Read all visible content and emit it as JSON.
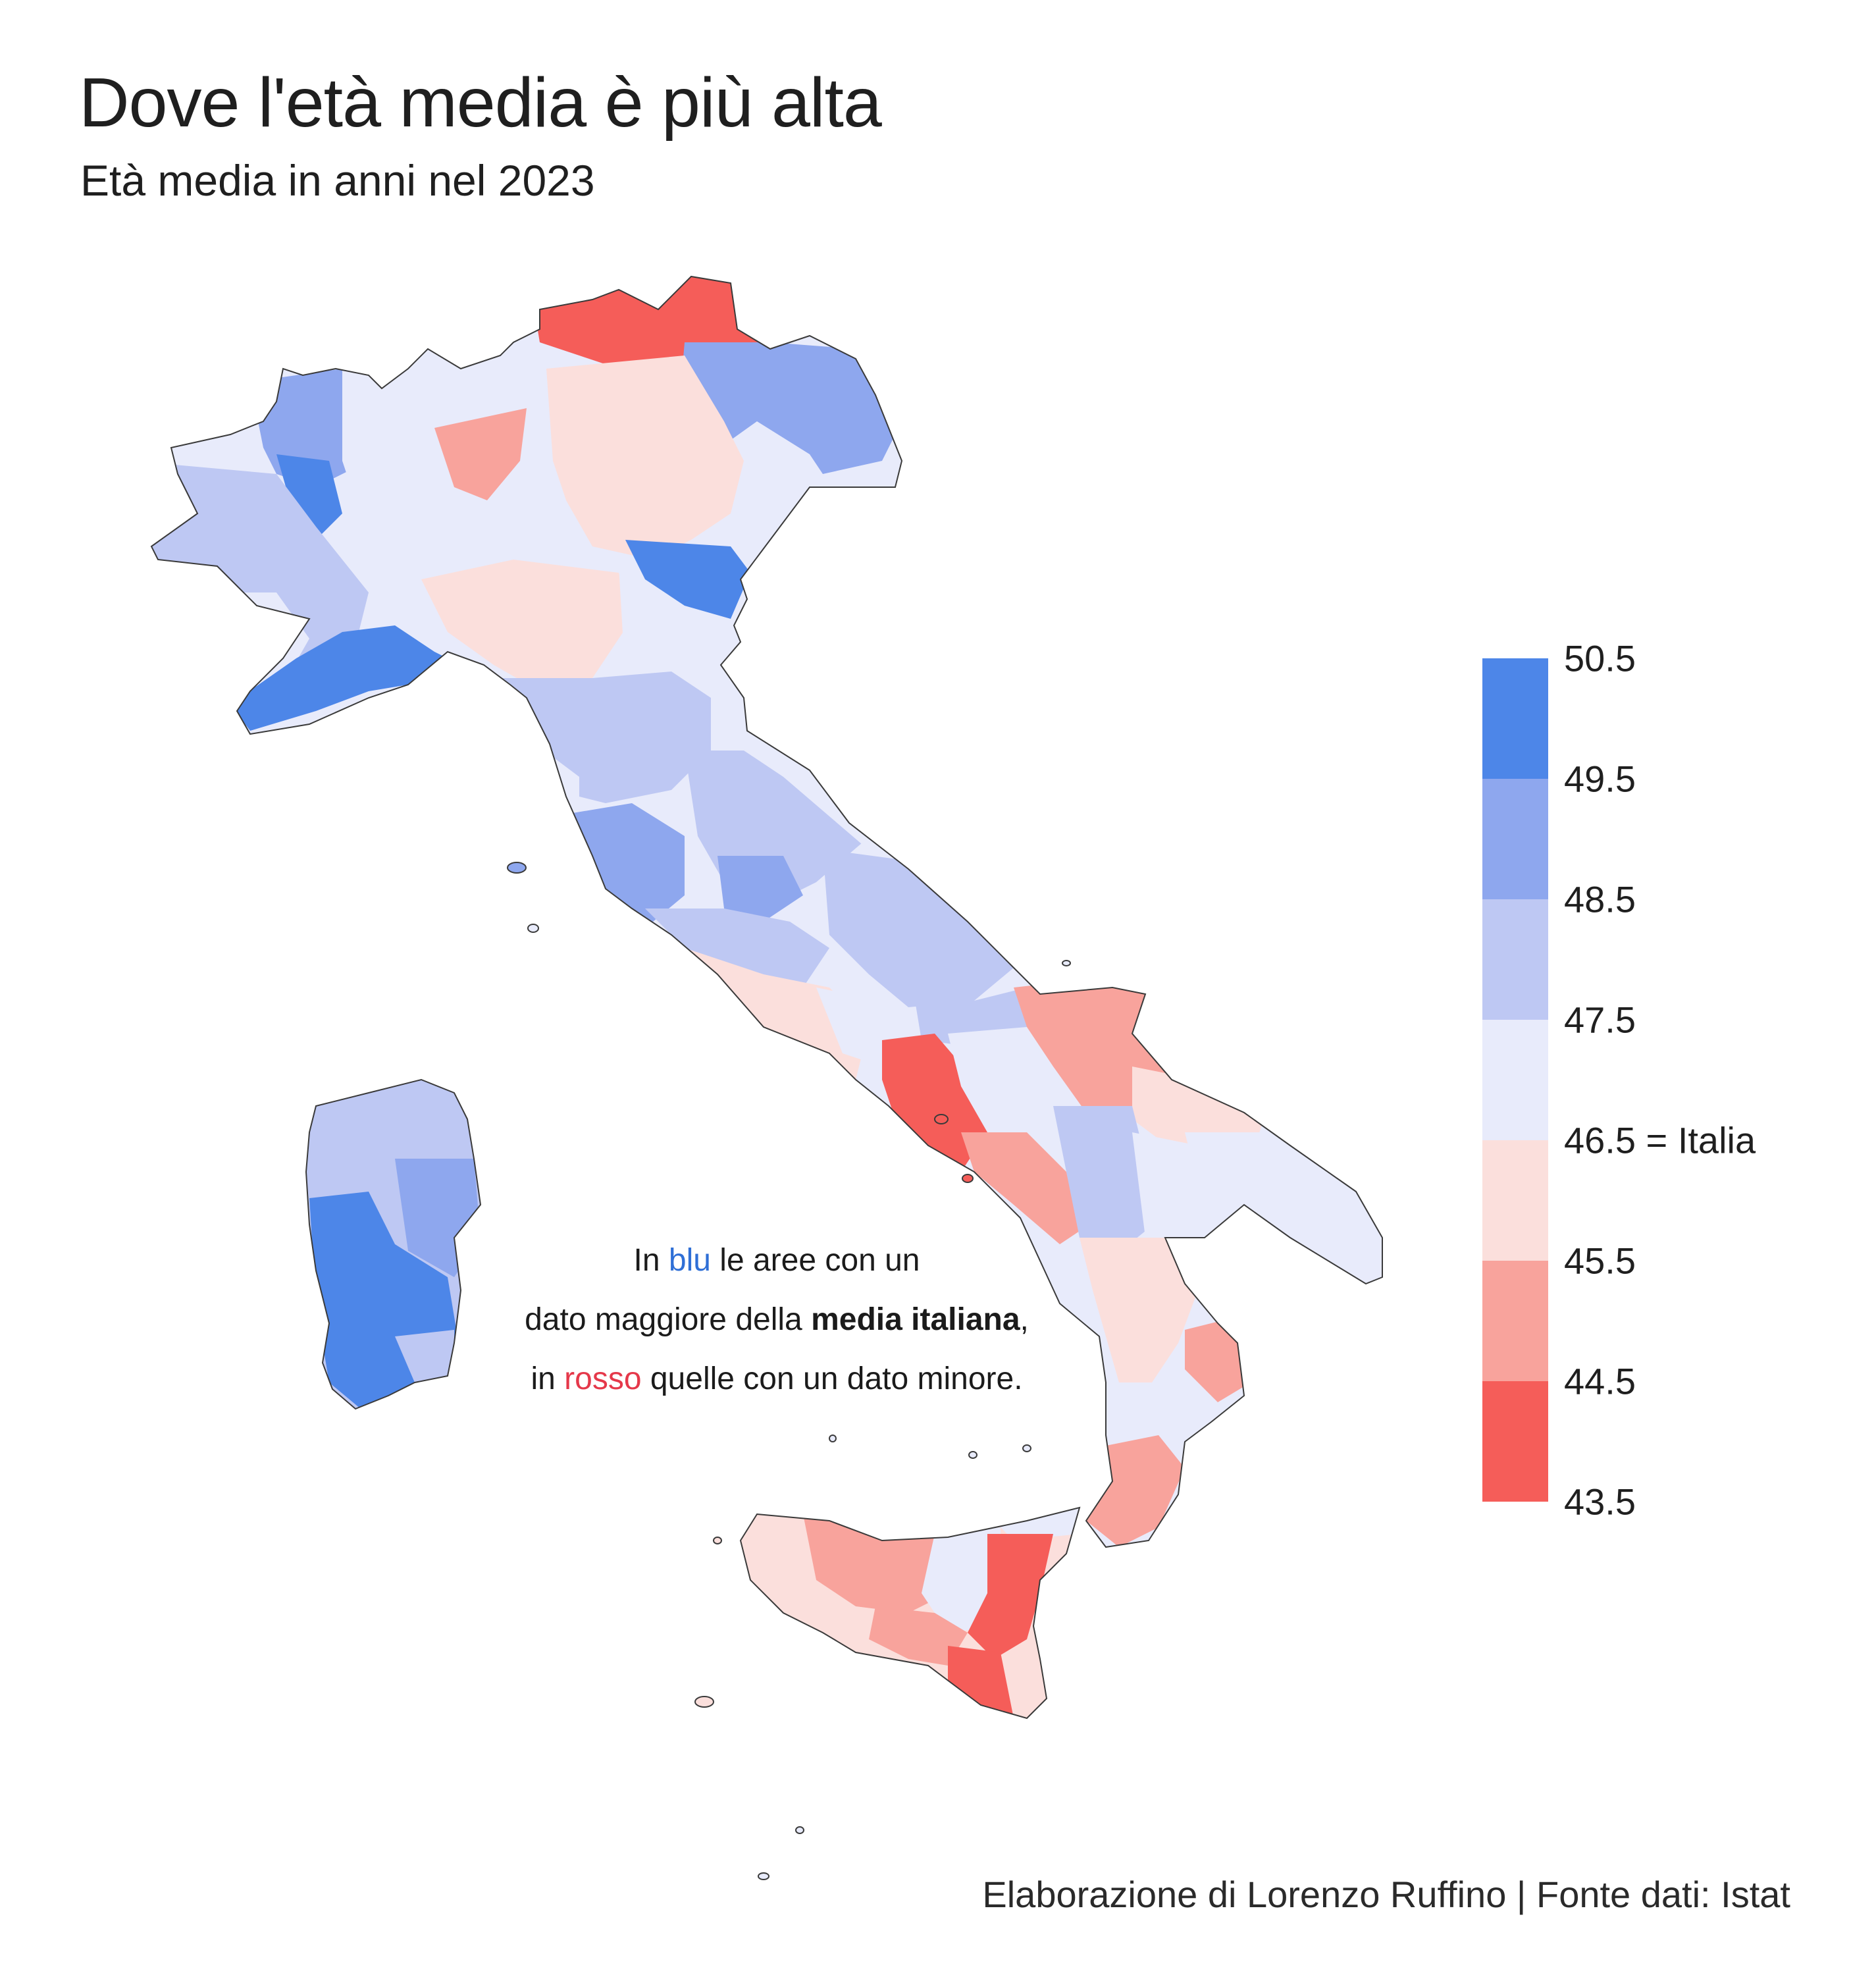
{
  "title": "Dove l'età media è più alta",
  "subtitle": "Età media in anni nel 2023",
  "annotation": {
    "l1a": "In ",
    "l1b": "blu",
    "l1c": " le aree con un",
    "l2a": "dato maggiore della ",
    "l2b": "media italiana",
    "l2c": ",",
    "l3a": "in ",
    "l3b": "rosso",
    "l3c": " quelle con un dato minore."
  },
  "legend": {
    "ticks": [
      "50.5",
      "49.5",
      "48.5",
      "47.5",
      "46.5 = Italia",
      "45.5",
      "44.5",
      "43.5"
    ],
    "bins": [
      {
        "range": "49.5–50.5",
        "color": "#4d86e8"
      },
      {
        "range": "48.5–49.5",
        "color": "#8ea7ee"
      },
      {
        "range": "47.5–48.5",
        "color": "#bec8f3"
      },
      {
        "range": "46.5–47.5",
        "color": "#e8ebfb"
      },
      {
        "range": "45.5–46.5",
        "color": "#fbdfdc"
      },
      {
        "range": "44.5–45.5",
        "color": "#f8a39c"
      },
      {
        "range": "43.5–44.5",
        "color": "#f55d59"
      }
    ]
  },
  "colors": {
    "blue_dark": "#4d86e8",
    "blue_mid": "#8ea7ee",
    "blue_light": "#bec8f3",
    "blue_pale": "#e8ebfb",
    "red_pale": "#fbdfdc",
    "red_mid": "#f8a39c",
    "red_dark": "#f55d59",
    "border": "#3a3a3a"
  },
  "footer": "Elaborazione di Lorenzo Ruffino | Fonte dati: Istat"
}
